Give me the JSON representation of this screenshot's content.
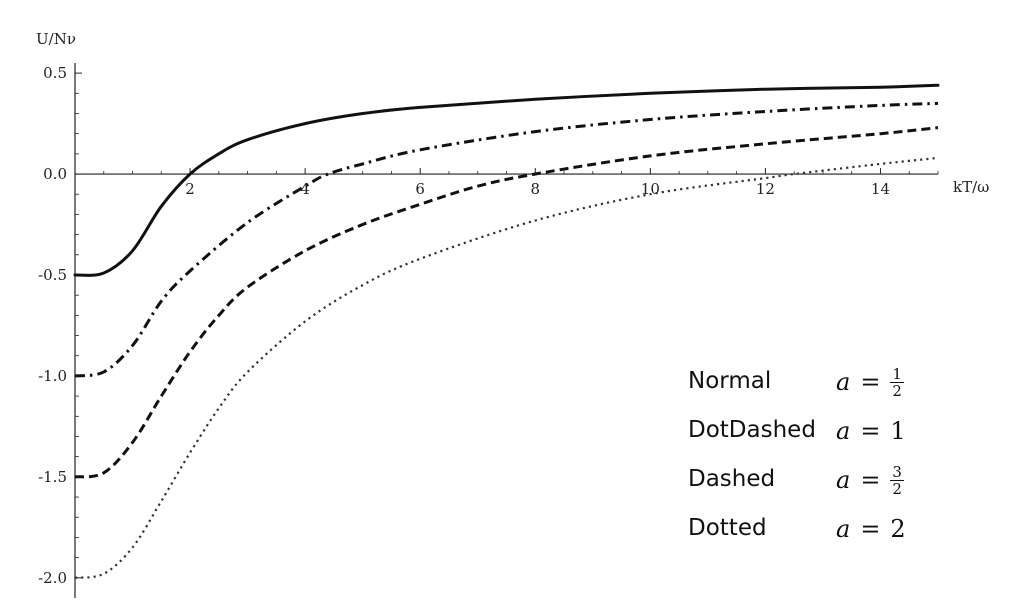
{
  "chart_data": {
    "type": "line",
    "xlabel": "kT/ω",
    "ylabel": "U/Nν",
    "xlim": [
      0,
      15
    ],
    "ylim": [
      -2.1,
      0.55
    ],
    "x_ticks": [
      "2",
      "4",
      "6",
      "8",
      "10",
      "12",
      "14"
    ],
    "y_ticks": [
      "0.5",
      "0.0",
      "-0.5",
      "-1.0",
      "-1.5",
      "-2.0"
    ],
    "grid": false,
    "legend_placement": "bottom-right",
    "series": [
      {
        "name": "Normal",
        "a_value": "1/2",
        "style": "solid",
        "x": [
          0,
          0.5,
          1,
          1.5,
          2,
          2.5,
          3,
          4,
          5,
          6,
          8,
          10,
          12,
          14,
          15
        ],
        "y": [
          -0.5,
          -0.49,
          -0.38,
          -0.16,
          0.0,
          0.1,
          0.17,
          0.25,
          0.3,
          0.33,
          0.37,
          0.4,
          0.42,
          0.43,
          0.44
        ]
      },
      {
        "name": "DotDashed",
        "a_value": "1",
        "style": "dot-dash",
        "x": [
          0,
          0.5,
          1,
          1.5,
          2,
          3,
          4,
          4.4,
          5,
          6,
          8,
          10,
          12,
          14,
          15
        ],
        "y": [
          -1.0,
          -0.98,
          -0.85,
          -0.63,
          -0.48,
          -0.24,
          -0.06,
          0.0,
          0.05,
          0.12,
          0.21,
          0.27,
          0.31,
          0.34,
          0.35
        ]
      },
      {
        "name": "Dashed",
        "a_value": "3/2",
        "style": "dashed",
        "x": [
          0,
          0.5,
          1,
          1.5,
          2,
          2.5,
          3,
          4,
          5,
          6,
          7,
          8,
          10,
          12,
          14,
          15
        ],
        "y": [
          -1.5,
          -1.48,
          -1.33,
          -1.1,
          -0.88,
          -0.7,
          -0.56,
          -0.38,
          -0.25,
          -0.15,
          -0.06,
          0.0,
          0.09,
          0.15,
          0.2,
          0.23
        ]
      },
      {
        "name": "Dotted",
        "a_value": "2",
        "style": "dotted",
        "x": [
          0,
          0.5,
          1,
          1.5,
          2,
          2.5,
          3,
          4,
          5,
          6,
          8,
          10,
          12,
          12.5,
          14,
          15
        ],
        "y": [
          -2.0,
          -1.98,
          -1.85,
          -1.62,
          -1.38,
          -1.16,
          -0.98,
          -0.73,
          -0.55,
          -0.42,
          -0.23,
          -0.1,
          -0.02,
          0.0,
          0.05,
          0.08
        ]
      }
    ]
  },
  "legend": [
    {
      "name": "Normal",
      "var": "a",
      "eq": "=",
      "value": "",
      "num": "1",
      "den": "2"
    },
    {
      "name": "DotDashed",
      "var": "a",
      "eq": "=",
      "value": "1",
      "num": "",
      "den": ""
    },
    {
      "name": "Dashed",
      "var": "a",
      "eq": "=",
      "value": "",
      "num": "3",
      "den": "2"
    },
    {
      "name": "Dotted",
      "var": "a",
      "eq": "=",
      "value": "2",
      "num": "",
      "den": ""
    }
  ],
  "colors": {
    "axis": "#222222",
    "line": "#111111",
    "dotted": "#333333"
  }
}
